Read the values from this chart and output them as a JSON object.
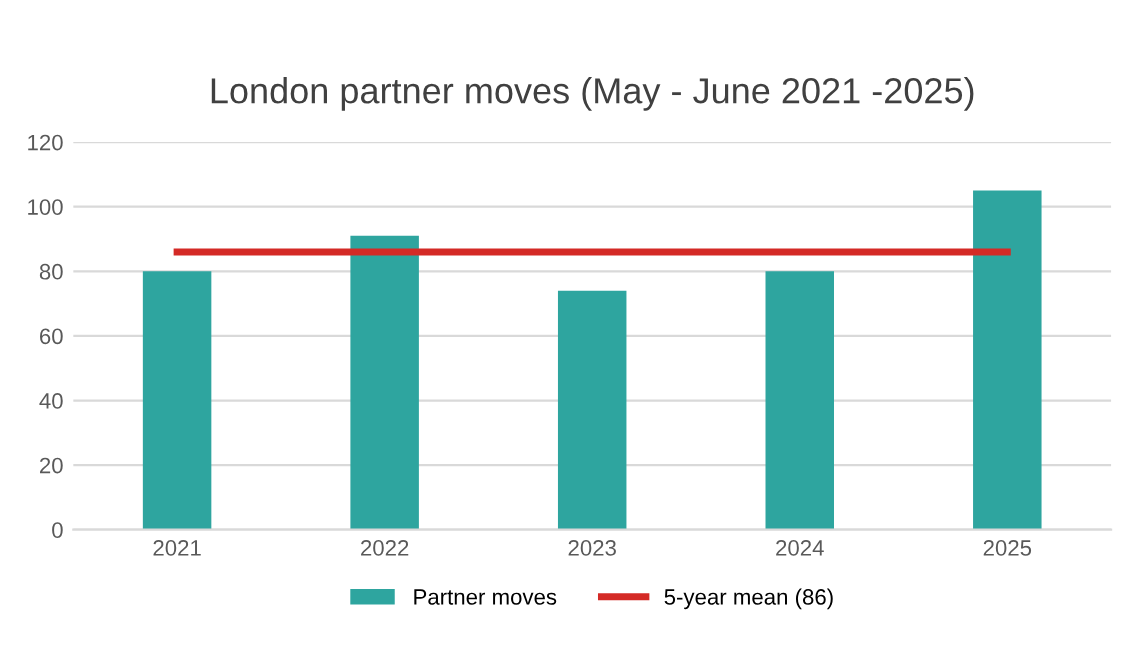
{
  "chart_data": {
    "type": "bar",
    "title": "London partner moves (May - June 2021 -2025)",
    "categories": [
      "2021",
      "2022",
      "2023",
      "2024",
      "2025"
    ],
    "series": [
      {
        "name": "Partner moves",
        "color": "#2ea59f",
        "values": [
          80,
          91,
          74,
          80,
          105
        ]
      },
      {
        "name": "5-year mean (86)",
        "type": "line",
        "color": "#d42a26",
        "values": [
          86,
          86,
          86,
          86,
          86
        ]
      }
    ],
    "ylim": [
      0,
      120
    ],
    "yticks": [
      0,
      20,
      40,
      60,
      80,
      100,
      120
    ],
    "grid": "y",
    "legend": "bottom"
  }
}
